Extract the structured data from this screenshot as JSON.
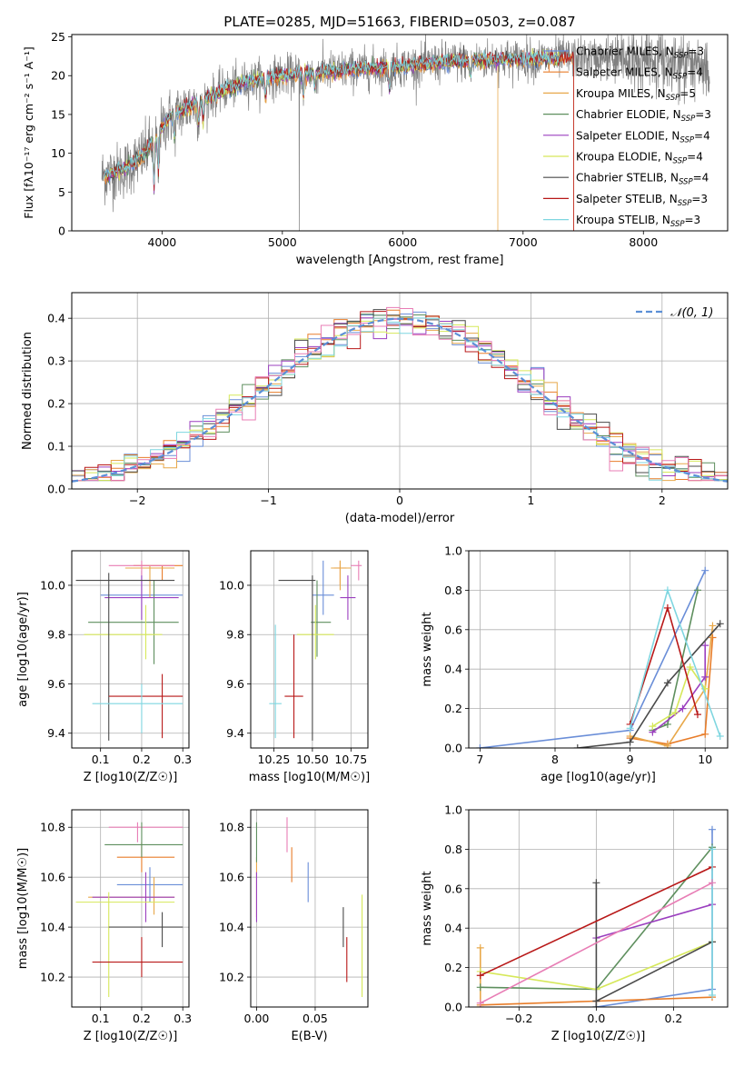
{
  "colors": {
    "series": [
      "#6a8ed8",
      "#e87d2a",
      "#e8a84a",
      "#5e8f5e",
      "#9b3fbf",
      "#d6e85a",
      "#4a4a4a",
      "#b81818",
      "#7fd6e0"
    ],
    "extra_pink": "#e87db5",
    "spectrum": "#808080",
    "grid": "#b0b0b0",
    "normal_curve": "#5b8fd6"
  },
  "chart_data": [
    {
      "id": "spectrum",
      "type": "line",
      "title": "PLATE=0285, MJD=51663, FIBERID=0503, z=0.087",
      "xlabel": "wavelength [Angstrom, rest frame]",
      "ylabel": "Flux [f_λ10^-17 erg cm^-2 s^-1 A^-1]",
      "xlim": [
        3250,
        8700
      ],
      "ylim": [
        0,
        25.3
      ],
      "xticks": [
        4000,
        5000,
        6000,
        7000,
        8000
      ],
      "yticks": [
        0,
        5,
        10,
        15,
        20,
        25
      ],
      "grid": false,
      "legend_position": "right",
      "legend": [
        "Chabrier MILES, N_SSP=3",
        "Salpeter MILES, N_SSP=4",
        "Kroupa MILES, N_SSP=5",
        "Chabrier ELODIE, N_SSP=3",
        "Salpeter ELODIE, N_SSP=4",
        "Kroupa ELODIE, N_SSP=4",
        "Chabrier STELIB, N_SSP=4",
        "Salpeter STELIB, N_SSP=3",
        "Kroupa STELIB, N_SSP=3"
      ],
      "continuum": [
        [
          3550,
          7.2
        ],
        [
          3700,
          8.0
        ],
        [
          3850,
          9.8
        ],
        [
          3950,
          12.0
        ],
        [
          4050,
          14.5
        ],
        [
          4250,
          16.2
        ],
        [
          4500,
          18.0
        ],
        [
          4700,
          19.2
        ],
        [
          4900,
          19.8
        ],
        [
          5200,
          20.3
        ],
        [
          5600,
          20.8
        ],
        [
          6000,
          21.2
        ],
        [
          6400,
          21.8
        ],
        [
          6800,
          22.1
        ],
        [
          7200,
          22.2
        ],
        [
          7500,
          22.3
        ],
        [
          7800,
          22.1
        ],
        [
          8200,
          21.9
        ],
        [
          8500,
          21.6
        ]
      ]
    },
    {
      "id": "residuals",
      "type": "histogram",
      "xlabel": "(data-model)/error",
      "ylabel": "Normed distribution",
      "xlim": [
        -2.5,
        2.5
      ],
      "ylim": [
        0,
        0.46
      ],
      "xticks": [
        -2,
        -1,
        0,
        1,
        2
      ],
      "yticks": [
        0.0,
        0.1,
        0.2,
        0.3,
        0.4
      ],
      "grid": true,
      "legend": [
        "𝒩(0, 1)"
      ],
      "legend_position": "top-right",
      "bin_width": 0.1
    },
    {
      "id": "z-age",
      "type": "errorbar",
      "xlabel": "Z [log10(Z/Z☉)]",
      "ylabel": "age  [log10(age/yr)]",
      "xlim": [
        0.03,
        0.315
      ],
      "ylim": [
        9.34,
        10.14
      ],
      "xticks": [
        0.1,
        0.2,
        0.3
      ],
      "yticks": [
        9.4,
        9.6,
        9.8,
        10.0
      ],
      "grid": true,
      "points": [
        {
          "x": 0.2,
          "y": 9.96,
          "xerr": [
            0.1,
            0.3
          ],
          "yerr": [
            9.86,
            10.06
          ]
        },
        {
          "x": 0.25,
          "y": 10.08,
          "xerr": [
            0.18,
            0.3
          ],
          "yerr": [
            10.02,
            10.08
          ]
        },
        {
          "x": 0.22,
          "y": 10.07,
          "xerr": [
            0.16,
            0.28
          ],
          "yerr": [
            9.95,
            10.08
          ]
        },
        {
          "x": 0.23,
          "y": 9.85,
          "xerr": [
            0.07,
            0.29
          ],
          "yerr": [
            9.68,
            10.02
          ]
        },
        {
          "x": 0.2,
          "y": 9.95,
          "xerr": [
            0.11,
            0.29
          ],
          "yerr": [
            9.86,
            10.04
          ]
        },
        {
          "x": 0.21,
          "y": 9.8,
          "xerr": [
            0.06,
            0.25
          ],
          "yerr": [
            9.7,
            9.92
          ]
        },
        {
          "x": 0.12,
          "y": 10.02,
          "xerr": [
            0.04,
            0.28
          ],
          "yerr": [
            9.37,
            10.05
          ]
        },
        {
          "x": 0.25,
          "y": 9.55,
          "xerr": [
            0.12,
            0.3
          ],
          "yerr": [
            9.38,
            9.64
          ]
        },
        {
          "x": 0.2,
          "y": 9.52,
          "xerr": [
            0.08,
            0.3
          ],
          "yerr": [
            9.4,
            9.6
          ]
        },
        {
          "x": 0.2,
          "y": 10.08,
          "xerr": [
            0.12,
            0.28
          ],
          "yerr": [
            10.04,
            10.1
          ],
          "pink": true
        }
      ]
    },
    {
      "id": "mass-age",
      "type": "errorbar",
      "xlabel": "mass [log10(M/M☉)]",
      "xlim": [
        10.1,
        10.86
      ],
      "ylim": [
        9.34,
        10.14
      ],
      "xticks": [
        10.25,
        10.5,
        10.75
      ],
      "yticks": [
        9.4,
        9.6,
        9.8,
        10.0
      ],
      "grid": true,
      "points": [
        {
          "x": 10.57,
          "y": 9.96,
          "xerr": [
            10.5,
            10.64
          ],
          "yerr": [
            9.88,
            10.1
          ]
        },
        {
          "x": 10.68,
          "y": 10.07,
          "xerr": [
            10.64,
            10.72
          ],
          "yerr": [
            10.0,
            10.1
          ]
        },
        {
          "x": 10.68,
          "y": 10.07,
          "xerr": [
            10.62,
            10.75
          ],
          "yerr": [
            9.98,
            10.1
          ]
        },
        {
          "x": 10.53,
          "y": 9.85,
          "xerr": [
            10.49,
            10.62
          ],
          "yerr": [
            9.71,
            10.02
          ]
        },
        {
          "x": 10.73,
          "y": 9.95,
          "xerr": [
            10.68,
            10.78
          ],
          "yerr": [
            9.86,
            10.04
          ]
        },
        {
          "x": 10.52,
          "y": 9.8,
          "xerr": [
            10.4,
            10.64
          ],
          "yerr": [
            9.7,
            9.92
          ]
        },
        {
          "x": 10.5,
          "y": 10.02,
          "xerr": [
            10.28,
            10.52
          ],
          "yerr": [
            9.37,
            10.04
          ]
        },
        {
          "x": 10.38,
          "y": 9.55,
          "xerr": [
            10.32,
            10.44
          ],
          "yerr": [
            9.38,
            9.8
          ]
        },
        {
          "x": 10.26,
          "y": 9.52,
          "xerr": [
            10.22,
            10.3
          ],
          "yerr": [
            9.38,
            9.84
          ]
        },
        {
          "x": 10.8,
          "y": 10.08,
          "xerr": [
            10.75,
            10.82
          ],
          "yerr": [
            10.02,
            10.1
          ],
          "pink": true
        }
      ]
    },
    {
      "id": "age-weight",
      "type": "line",
      "xlabel": "age  [log10(age/yr)]",
      "ylabel": "mass weight",
      "xlim": [
        6.85,
        10.3
      ],
      "ylim": [
        0,
        1.0
      ],
      "xticks": [
        7,
        8,
        9,
        10
      ],
      "yticks": [
        0.0,
        0.2,
        0.4,
        0.6,
        0.8,
        1.0
      ],
      "grid": true,
      "series": [
        {
          "values": [
            [
              7.0,
              0.0
            ],
            [
              9.0,
              0.09
            ],
            [
              10.0,
              0.9
            ]
          ]
        },
        {
          "values": [
            [
              9.0,
              0.05
            ],
            [
              9.5,
              0.02
            ],
            [
              10.0,
              0.07
            ],
            [
              10.1,
              0.56
            ]
          ]
        },
        {
          "values": [
            [
              9.0,
              0.06
            ],
            [
              9.5,
              0.01
            ],
            [
              10.0,
              0.3
            ],
            [
              10.1,
              0.62
            ]
          ]
        },
        {
          "values": [
            [
              9.3,
              0.09
            ],
            [
              9.5,
              0.12
            ],
            [
              9.9,
              0.8
            ]
          ]
        },
        {
          "values": [
            [
              9.3,
              0.08
            ],
            [
              9.7,
              0.2
            ],
            [
              10.0,
              0.36
            ],
            [
              10.0,
              0.52
            ]
          ]
        },
        {
          "values": [
            [
              9.3,
              0.11
            ],
            [
              9.6,
              0.18
            ],
            [
              9.8,
              0.41
            ],
            [
              10.0,
              0.3
            ]
          ]
        },
        {
          "values": [
            [
              8.3,
              0.0
            ],
            [
              9.0,
              0.03
            ],
            [
              9.5,
              0.33
            ],
            [
              10.2,
              0.63
            ]
          ]
        },
        {
          "values": [
            [
              9.0,
              0.12
            ],
            [
              9.5,
              0.71
            ],
            [
              9.9,
              0.17
            ]
          ]
        },
        {
          "values": [
            [
              9.0,
              0.1
            ],
            [
              9.5,
              0.8
            ],
            [
              10.2,
              0.06
            ]
          ]
        }
      ]
    },
    {
      "id": "z-mass",
      "type": "errorbar",
      "xlabel": "Z [log10(Z/Z☉)]",
      "ylabel": "mass [log10(M/M☉)]",
      "xlim": [
        0.03,
        0.315
      ],
      "ylim": [
        10.08,
        10.87
      ],
      "xticks": [
        0.1,
        0.2,
        0.3
      ],
      "yticks": [
        10.2,
        10.4,
        10.6,
        10.8
      ],
      "grid": true,
      "points": [
        {
          "x": 0.22,
          "y": 10.57,
          "xerr": [
            0.14,
            0.3
          ],
          "yerr": [
            10.5,
            10.64
          ]
        },
        {
          "x": 0.2,
          "y": 10.68,
          "xerr": [
            0.14,
            0.28
          ],
          "yerr": [
            10.62,
            10.74
          ]
        },
        {
          "x": 0.19,
          "y": 10.8,
          "xerr": [
            0.12,
            0.3
          ],
          "yerr": [
            10.74,
            10.82
          ],
          "pink": true
        },
        {
          "x": 0.23,
          "y": 10.52,
          "xerr": [
            0.07,
            0.28
          ],
          "yerr": [
            10.45,
            10.6
          ]
        },
        {
          "x": 0.2,
          "y": 10.73,
          "xerr": [
            0.11,
            0.3
          ],
          "yerr": [
            10.68,
            10.82
          ]
        },
        {
          "x": 0.21,
          "y": 10.52,
          "xerr": [
            0.08,
            0.28
          ],
          "yerr": [
            10.42,
            10.62
          ]
        },
        {
          "x": 0.12,
          "y": 10.5,
          "xerr": [
            0.04,
            0.28
          ],
          "yerr": [
            10.12,
            10.54
          ]
        },
        {
          "x": 0.25,
          "y": 10.4,
          "xerr": [
            0.12,
            0.3
          ],
          "yerr": [
            10.32,
            10.46
          ]
        },
        {
          "x": 0.2,
          "y": 10.26,
          "xerr": [
            0.08,
            0.3
          ],
          "yerr": [
            10.2,
            10.36
          ]
        }
      ]
    },
    {
      "id": "ebv-mass",
      "type": "errorbar",
      "xlabel": "E(B-V)",
      "xlim": [
        -0.005,
        0.095
      ],
      "ylim": [
        10.08,
        10.87
      ],
      "xticks": [
        0.0,
        0.05
      ],
      "yticks": [
        10.2,
        10.4,
        10.6,
        10.8
      ],
      "grid": true,
      "points": [
        {
          "x": 0.044,
          "y": 10.57,
          "yerr": [
            10.5,
            10.66
          ]
        },
        {
          "x": 0.03,
          "y": 10.66,
          "yerr": [
            10.58,
            10.72
          ]
        },
        {
          "x": 0.026,
          "y": 10.78,
          "yerr": [
            10.7,
            10.84
          ],
          "pink": true
        },
        {
          "x": 0.0,
          "y": 10.52,
          "yerr": [
            10.44,
            10.68
          ]
        },
        {
          "x": 0.0,
          "y": 10.73,
          "yerr": [
            10.66,
            10.82
          ]
        },
        {
          "x": 0.0,
          "y": 10.5,
          "yerr": [
            10.42,
            10.62
          ]
        },
        {
          "x": 0.09,
          "y": 10.3,
          "yerr": [
            10.12,
            10.53
          ]
        },
        {
          "x": 0.074,
          "y": 10.4,
          "yerr": [
            10.32,
            10.48
          ]
        },
        {
          "x": 0.077,
          "y": 10.26,
          "yerr": [
            10.18,
            10.36
          ]
        }
      ]
    },
    {
      "id": "zmet-weight",
      "type": "line",
      "xlabel": "Z [log10(Z/Z☉)]",
      "ylabel": "mass weight",
      "xlim": [
        -0.33,
        0.34
      ],
      "ylim": [
        0,
        1.0
      ],
      "xticks": [
        -0.2,
        0.0,
        0.2
      ],
      "yticks": [
        0.0,
        0.2,
        0.4,
        0.6,
        0.8,
        1.0
      ],
      "grid": true,
      "series": [
        {
          "values": [
            [
              0.0,
              0.0
            ],
            [
              0.3,
              0.09
            ],
            [
              0.3,
              0.9
            ]
          ]
        },
        {
          "values": [
            [
              -0.3,
              0.01
            ],
            [
              0.0,
              0.03
            ],
            [
              0.3,
              0.05
            ]
          ]
        },
        {
          "values": [
            [
              -0.3,
              0.3
            ],
            [
              -0.3,
              0.0
            ]
          ]
        },
        {
          "values": [
            [
              -0.3,
              0.1
            ],
            [
              0.0,
              0.09
            ],
            [
              0.3,
              0.81
            ]
          ]
        },
        {
          "values": [
            [
              0.0,
              0.35
            ],
            [
              0.3,
              0.52
            ]
          ]
        },
        {
          "values": [
            [
              -0.3,
              0.18
            ],
            [
              0.0,
              0.09
            ],
            [
              0.3,
              0.33
            ]
          ]
        },
        {
          "values": [
            [
              0.0,
              0.0
            ],
            [
              0.0,
              0.63
            ],
            [
              0.0,
              0.03
            ],
            [
              0.3,
              0.33
            ]
          ]
        },
        {
          "values": [
            [
              -0.3,
              0.16
            ],
            [
              0.3,
              0.71
            ]
          ]
        },
        {
          "values": [
            [
              0.3,
              0.8
            ],
            [
              0.3,
              0.06
            ]
          ]
        },
        {
          "values": [
            [
              -0.3,
              0.02
            ],
            [
              0.3,
              0.63
            ]
          ],
          "pink": true
        }
      ]
    }
  ]
}
